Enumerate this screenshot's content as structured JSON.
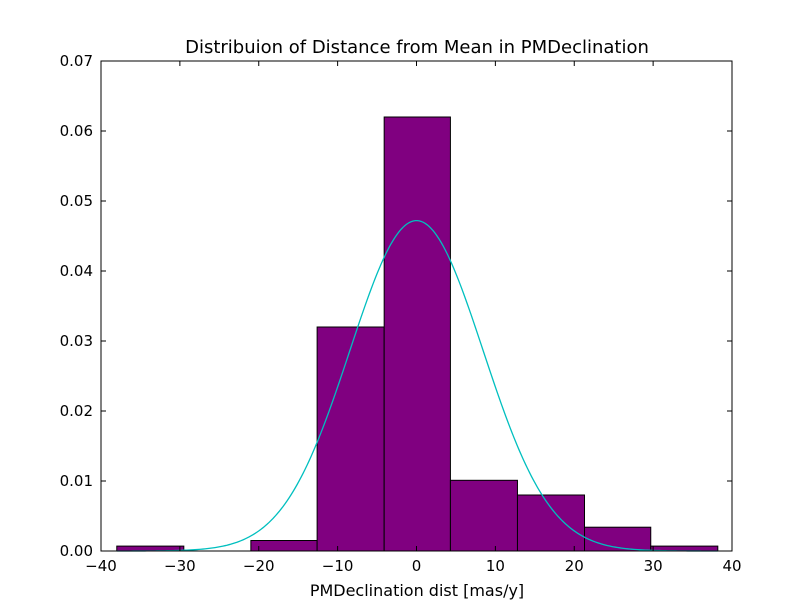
{
  "chart_data": {
    "type": "bar",
    "title": "Distribuion of Distance from Mean in PMDeclination",
    "xlabel": "PMDeclination dist [mas/y]",
    "ylabel": "",
    "xlim": [
      -40,
      40
    ],
    "ylim": [
      0,
      0.07
    ],
    "x_ticks": [
      "−40",
      "−30",
      "−20",
      "−10",
      "0",
      "10",
      "20",
      "30",
      "40"
    ],
    "y_ticks": [
      "0.00",
      "0.01",
      "0.02",
      "0.03",
      "0.04",
      "0.05",
      "0.06",
      "0.07"
    ],
    "grid": false,
    "bar_color": "#800080",
    "curve_color": "#00bfbf",
    "bins": [
      {
        "x0": -38.0,
        "x1": -29.5,
        "value": 0.0007
      },
      {
        "x0": -29.5,
        "x1": -21.0,
        "value": 0.0
      },
      {
        "x0": -21.0,
        "x1": -12.6,
        "value": 0.0015
      },
      {
        "x0": -12.6,
        "x1": -4.1,
        "value": 0.032
      },
      {
        "x0": -4.1,
        "x1": 4.3,
        "value": 0.062
      },
      {
        "x0": 4.3,
        "x1": 12.8,
        "value": 0.0101
      },
      {
        "x0": 12.8,
        "x1": 21.3,
        "value": 0.008
      },
      {
        "x0": 21.3,
        "x1": 29.7,
        "value": 0.0034
      },
      {
        "x0": 29.7,
        "x1": 38.2,
        "value": 0.0007
      }
    ],
    "fit_curve": {
      "mean": 0.0,
      "sigma": 8.45,
      "peak": 0.0472
    }
  }
}
